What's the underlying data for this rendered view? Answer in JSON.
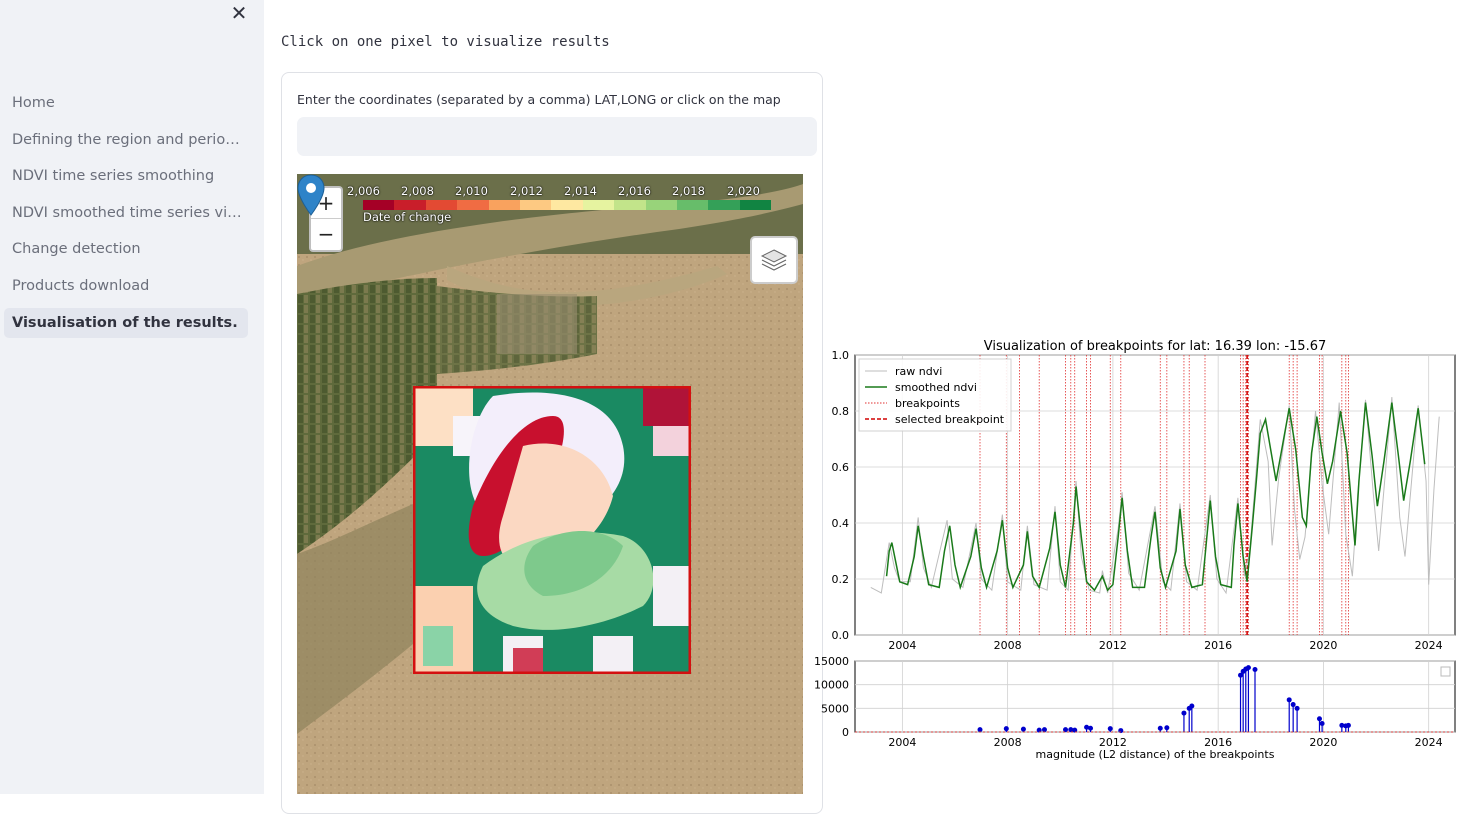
{
  "sidebar": {
    "close_icon": "close-icon",
    "items": [
      {
        "label": "Home",
        "active": false
      },
      {
        "label": "Defining the region and period …",
        "active": false
      },
      {
        "label": "NDVI time series smoothing",
        "active": false
      },
      {
        "label": "NDVI smoothed time series vis…",
        "active": false
      },
      {
        "label": "Change detection",
        "active": false
      },
      {
        "label": "Products download",
        "active": false
      },
      {
        "label": "Visualisation of the results.",
        "active": true
      }
    ]
  },
  "main": {
    "heading": "Click on one pixel to visualize results",
    "input_label": "Enter the coordinates (separated by a comma) LAT,LONG or click on the map",
    "input_value": ""
  },
  "map": {
    "zoom_in": "+",
    "zoom_out": "−",
    "legend": {
      "years": [
        "2,006",
        "2,008",
        "2,010",
        "2,012",
        "2,014",
        "2,016",
        "2,018",
        "2,020"
      ],
      "caption": "Date of change",
      "colors": [
        "#a50026",
        "#c91e2a",
        "#e34a33",
        "#f06c43",
        "#f9a25e",
        "#fdc982",
        "#fee8a1",
        "#e6f3a0",
        "#c2e48a",
        "#98d37a",
        "#67bd6a",
        "#34a058",
        "#118442"
      ]
    },
    "layers_icon": "layers-icon",
    "marker_icon": "map-pin-icon"
  },
  "chart_data": [
    {
      "type": "line",
      "title": "Visualization of breakpoints for lat: 16.39 lon: -15.67",
      "xlabel": "",
      "ylabel": "",
      "xlim": [
        2002.2,
        2025.0
      ],
      "ylim": [
        0.0,
        1.0
      ],
      "xticks": [
        2004,
        2008,
        2012,
        2016,
        2020,
        2024
      ],
      "yticks": [
        "0.0",
        "0.2",
        "0.4",
        "0.6",
        "0.8",
        "1.0"
      ],
      "grid": true,
      "legend_position": "top-left",
      "series": [
        {
          "name": "raw ndvi",
          "color": "#bdbdbd"
        },
        {
          "name": "smoothed ndvi",
          "color": "#1a7a1a"
        }
      ],
      "breakpoints_name": "breakpoints",
      "selected_breakpoint_name": "selected breakpoint",
      "smoothed_ndvi": [
        [
          2003.4,
          0.21
        ],
        [
          2003.5,
          0.3
        ],
        [
          2003.6,
          0.33
        ],
        [
          2003.75,
          0.26
        ],
        [
          2003.9,
          0.19
        ],
        [
          2004.2,
          0.18
        ],
        [
          2004.45,
          0.28
        ],
        [
          2004.6,
          0.39
        ],
        [
          2004.8,
          0.28
        ],
        [
          2005.0,
          0.18
        ],
        [
          2005.4,
          0.17
        ],
        [
          2005.6,
          0.3
        ],
        [
          2005.8,
          0.39
        ],
        [
          2006.0,
          0.25
        ],
        [
          2006.2,
          0.17
        ],
        [
          2006.6,
          0.28
        ],
        [
          2006.8,
          0.38
        ],
        [
          2007.0,
          0.24
        ],
        [
          2007.2,
          0.17
        ],
        [
          2007.6,
          0.3
        ],
        [
          2007.8,
          0.41
        ],
        [
          2008.0,
          0.24
        ],
        [
          2008.2,
          0.17
        ],
        [
          2008.6,
          0.25
        ],
        [
          2008.75,
          0.37
        ],
        [
          2008.95,
          0.21
        ],
        [
          2009.2,
          0.17
        ],
        [
          2009.6,
          0.31
        ],
        [
          2009.8,
          0.44
        ],
        [
          2010.0,
          0.25
        ],
        [
          2010.2,
          0.17
        ],
        [
          2010.5,
          0.4
        ],
        [
          2010.6,
          0.53
        ],
        [
          2010.8,
          0.35
        ],
        [
          2011.0,
          0.19
        ],
        [
          2011.3,
          0.16
        ],
        [
          2011.6,
          0.21
        ],
        [
          2011.8,
          0.16
        ],
        [
          2012.0,
          0.18
        ],
        [
          2012.2,
          0.35
        ],
        [
          2012.35,
          0.49
        ],
        [
          2012.55,
          0.3
        ],
        [
          2012.75,
          0.17
        ],
        [
          2013.2,
          0.17
        ],
        [
          2013.45,
          0.35
        ],
        [
          2013.6,
          0.44
        ],
        [
          2013.8,
          0.24
        ],
        [
          2014.0,
          0.17
        ],
        [
          2014.4,
          0.3
        ],
        [
          2014.55,
          0.45
        ],
        [
          2014.75,
          0.25
        ],
        [
          2015.0,
          0.17
        ],
        [
          2015.4,
          0.18
        ],
        [
          2015.55,
          0.33
        ],
        [
          2015.7,
          0.48
        ],
        [
          2015.9,
          0.28
        ],
        [
          2016.1,
          0.18
        ],
        [
          2016.5,
          0.17
        ],
        [
          2016.6,
          0.32
        ],
        [
          2016.75,
          0.47
        ],
        [
          2016.95,
          0.28
        ],
        [
          2017.1,
          0.19
        ],
        [
          2017.3,
          0.39
        ],
        [
          2017.45,
          0.55
        ],
        [
          2017.6,
          0.72
        ],
        [
          2017.8,
          0.77
        ],
        [
          2018.0,
          0.66
        ],
        [
          2018.2,
          0.55
        ],
        [
          2018.45,
          0.68
        ],
        [
          2018.7,
          0.81
        ],
        [
          2018.95,
          0.66
        ],
        [
          2019.2,
          0.42
        ],
        [
          2019.35,
          0.39
        ],
        [
          2019.55,
          0.65
        ],
        [
          2019.75,
          0.78
        ],
        [
          2019.95,
          0.65
        ],
        [
          2020.15,
          0.54
        ],
        [
          2020.35,
          0.62
        ],
        [
          2020.65,
          0.8
        ],
        [
          2020.9,
          0.65
        ],
        [
          2021.2,
          0.32
        ],
        [
          2021.35,
          0.55
        ],
        [
          2021.6,
          0.83
        ],
        [
          2021.85,
          0.64
        ],
        [
          2022.05,
          0.46
        ],
        [
          2022.3,
          0.62
        ],
        [
          2022.6,
          0.83
        ],
        [
          2022.85,
          0.64
        ],
        [
          2023.05,
          0.48
        ],
        [
          2023.3,
          0.62
        ],
        [
          2023.6,
          0.81
        ],
        [
          2023.85,
          0.61
        ]
      ],
      "raw_ndvi": [
        [
          2002.8,
          0.17
        ],
        [
          2003.0,
          0.16
        ],
        [
          2003.2,
          0.15
        ],
        [
          2003.5,
          0.33
        ],
        [
          2003.7,
          0.24
        ],
        [
          2003.9,
          0.19
        ],
        [
          2004.3,
          0.19
        ],
        [
          2004.6,
          0.42
        ],
        [
          2004.8,
          0.24
        ],
        [
          2005.1,
          0.17
        ],
        [
          2005.7,
          0.41
        ],
        [
          2005.9,
          0.2
        ],
        [
          2006.3,
          0.17
        ],
        [
          2006.8,
          0.4
        ],
        [
          2007.0,
          0.2
        ],
        [
          2007.4,
          0.16
        ],
        [
          2007.8,
          0.43
        ],
        [
          2008.0,
          0.19
        ],
        [
          2008.5,
          0.16
        ],
        [
          2008.75,
          0.39
        ],
        [
          2009.0,
          0.18
        ],
        [
          2009.5,
          0.16
        ],
        [
          2009.8,
          0.46
        ],
        [
          2010.0,
          0.19
        ],
        [
          2010.3,
          0.16
        ],
        [
          2010.6,
          0.55
        ],
        [
          2010.8,
          0.28
        ],
        [
          2011.1,
          0.16
        ],
        [
          2011.5,
          0.15
        ],
        [
          2011.6,
          0.23
        ],
        [
          2011.8,
          0.15
        ],
        [
          2012.2,
          0.38
        ],
        [
          2012.35,
          0.51
        ],
        [
          2012.6,
          0.22
        ],
        [
          2013.0,
          0.16
        ],
        [
          2013.6,
          0.46
        ],
        [
          2013.9,
          0.19
        ],
        [
          2014.2,
          0.16
        ],
        [
          2014.55,
          0.47
        ],
        [
          2014.8,
          0.19
        ],
        [
          2015.2,
          0.16
        ],
        [
          2015.7,
          0.5
        ],
        [
          2015.95,
          0.2
        ],
        [
          2016.3,
          0.15
        ],
        [
          2016.75,
          0.49
        ],
        [
          2017.0,
          0.21
        ],
        [
          2017.2,
          0.3
        ],
        [
          2017.6,
          0.77
        ],
        [
          2017.9,
          0.62
        ],
        [
          2018.05,
          0.32
        ],
        [
          2018.3,
          0.56
        ],
        [
          2018.7,
          0.82
        ],
        [
          2018.9,
          0.45
        ],
        [
          2019.1,
          0.27
        ],
        [
          2019.3,
          0.35
        ],
        [
          2019.7,
          0.8
        ],
        [
          2019.95,
          0.54
        ],
        [
          2020.2,
          0.36
        ],
        [
          2020.6,
          0.83
        ],
        [
          2020.85,
          0.36
        ],
        [
          2021.1,
          0.21
        ],
        [
          2021.3,
          0.5
        ],
        [
          2021.6,
          0.84
        ],
        [
          2021.9,
          0.5
        ],
        [
          2022.1,
          0.3
        ],
        [
          2022.6,
          0.85
        ],
        [
          2022.9,
          0.42
        ],
        [
          2023.1,
          0.28
        ],
        [
          2023.6,
          0.82
        ],
        [
          2023.9,
          0.55
        ],
        [
          2024.0,
          0.18
        ],
        [
          2024.2,
          0.52
        ],
        [
          2024.4,
          0.78
        ]
      ],
      "breakpoints": [
        2006.95,
        2007.95,
        2008.45,
        2009.2,
        2010.2,
        2010.4,
        2010.55,
        2011.0,
        2011.15,
        2011.9,
        2012.3,
        2013.8,
        2014.05,
        2014.7,
        2014.9,
        2015.5,
        2016.85,
        2016.95,
        2017.05,
        2017.15,
        2018.7,
        2018.85,
        2019.0,
        2019.85,
        2019.95,
        2020.7,
        2020.85,
        2020.95
      ],
      "selected_breakpoint": 2017.1
    },
    {
      "type": "scatter",
      "xlabel": "magnitude (L2 distance) of the breakpoints",
      "ylabel": "",
      "xlim": [
        2002.2,
        2025.0
      ],
      "ylim": [
        0,
        15000
      ],
      "xticks": [
        2004,
        2008,
        2012,
        2016,
        2020,
        2024
      ],
      "yticks": [
        0,
        5000,
        10000,
        15000
      ],
      "grid": true,
      "color": "#0000cc",
      "magnitudes": [
        [
          2006.95,
          500
        ],
        [
          2007.95,
          700
        ],
        [
          2008.6,
          600
        ],
        [
          2009.2,
          400
        ],
        [
          2009.4,
          500
        ],
        [
          2010.2,
          500
        ],
        [
          2010.4,
          500
        ],
        [
          2010.55,
          400
        ],
        [
          2011.0,
          1000
        ],
        [
          2011.15,
          800
        ],
        [
          2011.9,
          700
        ],
        [
          2012.3,
          300
        ],
        [
          2013.8,
          800
        ],
        [
          2014.05,
          900
        ],
        [
          2014.7,
          4000
        ],
        [
          2014.9,
          5000
        ],
        [
          2015.0,
          5500
        ],
        [
          2016.85,
          12000
        ],
        [
          2016.95,
          12800
        ],
        [
          2017.05,
          13300
        ],
        [
          2017.15,
          13600
        ],
        [
          2017.4,
          13200
        ],
        [
          2018.7,
          6800
        ],
        [
          2018.85,
          5800
        ],
        [
          2019.0,
          5000
        ],
        [
          2019.85,
          2800
        ],
        [
          2019.95,
          1800
        ],
        [
          2020.7,
          1400
        ],
        [
          2020.85,
          1300
        ],
        [
          2020.95,
          1400
        ]
      ]
    }
  ]
}
